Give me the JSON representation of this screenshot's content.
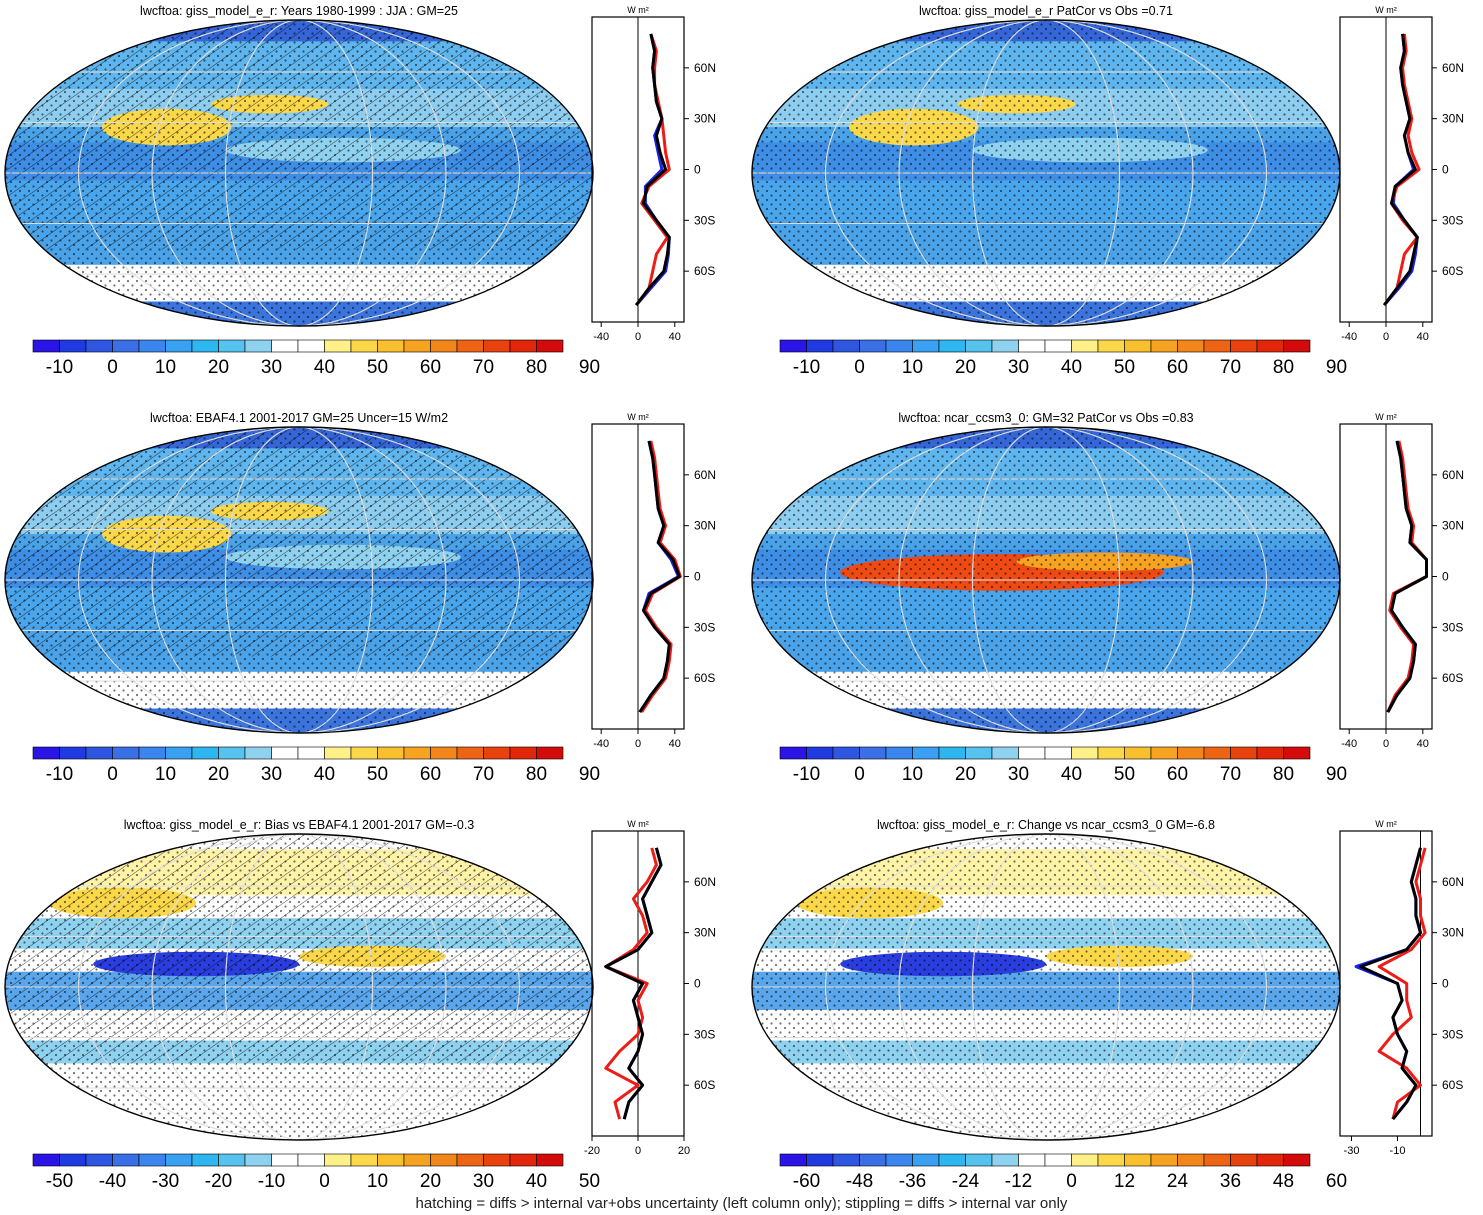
{
  "footer": "hatching = diffs > internal var+obs uncertainty (left column only); stippling = diffs > internal var only",
  "colors": {
    "scale": [
      "#2a14e6",
      "#1f3ae0",
      "#2f56e0",
      "#3a6fe6",
      "#3a86ee",
      "#3aa0f2",
      "#2eb6f0",
      "#56c2ee",
      "#8fd2f0",
      "#ffffff",
      "#ffffff",
      "#fff08a",
      "#fbd84a",
      "#f8bf2e",
      "#f6a321",
      "#f2861b",
      "#ee6415",
      "#e8420f",
      "#e2260a",
      "#d40b0b"
    ],
    "obs": "#1a22e6",
    "model": "#ee1b16",
    "alt": "#000000"
  },
  "chart_data": [
    {
      "type": "heatmap",
      "title": "lwcftoa: giss_model_e_r: Years 1980-1999 : JJA : GM=25",
      "colorbar_labels": [
        "-10",
        "0",
        "10",
        "20",
        "30",
        "40",
        "50",
        "60",
        "70",
        "80",
        "90"
      ],
      "hatching": true,
      "zonal_profile": {
        "unit": "W m²",
        "xlim": [
          -50,
          50
        ],
        "x_ticks": [
          "-40",
          "0",
          "40"
        ],
        "lat_ticks": [
          "60N",
          "30N",
          "0",
          "30S",
          "60S"
        ],
        "lat": [
          80,
          70,
          60,
          50,
          40,
          30,
          20,
          10,
          0,
          -10,
          -20,
          -30,
          -40,
          -50,
          -60,
          -70,
          -80
        ],
        "series": [
          {
            "color_key": "obs",
            "values": [
              14,
              18,
              16,
              18,
              20,
              26,
              18,
              22,
              26,
              8,
              8,
              20,
              34,
              33,
              30,
              14,
              -2
            ]
          },
          {
            "color_key": "model",
            "values": [
              14,
              20,
              18,
              18,
              22,
              26,
              28,
              30,
              34,
              12,
              4,
              18,
              32,
              20,
              16,
              12,
              -2
            ]
          },
          {
            "color_key": "alt",
            "values": [
              14,
              18,
              16,
              18,
              20,
              26,
              20,
              24,
              30,
              10,
              6,
              20,
              34,
              32,
              28,
              12,
              -2
            ]
          }
        ]
      }
    },
    {
      "type": "heatmap",
      "title": "lwcftoa: giss_model_e_r PatCor vs Obs =0.71",
      "colorbar_labels": [
        "-10",
        "0",
        "10",
        "20",
        "30",
        "40",
        "50",
        "60",
        "70",
        "80",
        "90"
      ],
      "hatching": false,
      "zonal_profile": {
        "unit": "W m²",
        "xlim": [
          -50,
          50
        ],
        "x_ticks": [
          "-40",
          "0",
          "40"
        ],
        "lat_ticks": [
          "60N",
          "30N",
          "0",
          "30S",
          "60S"
        ],
        "lat": [
          80,
          70,
          60,
          50,
          40,
          30,
          20,
          10,
          0,
          -10,
          -20,
          -30,
          -40,
          -50,
          -60,
          -70,
          -80
        ],
        "series": [
          {
            "color_key": "obs",
            "values": [
              18,
              20,
              16,
              18,
              22,
              26,
              20,
              24,
              30,
              10,
              8,
              20,
              34,
              32,
              28,
              14,
              -2
            ]
          },
          {
            "color_key": "model",
            "values": [
              20,
              22,
              18,
              20,
              24,
              28,
              24,
              28,
              36,
              12,
              6,
              18,
              34,
              20,
              16,
              12,
              -2
            ]
          },
          {
            "color_key": "alt",
            "values": [
              18,
              20,
              16,
              18,
              22,
              26,
              20,
              24,
              32,
              10,
              6,
              20,
              34,
              30,
              26,
              12,
              -2
            ]
          }
        ]
      }
    },
    {
      "type": "heatmap",
      "title": "lwcftoa: EBAF4.1 2001-2017 GM=25 Uncer=15 W/m2",
      "colorbar_labels": [
        "-10",
        "0",
        "10",
        "20",
        "30",
        "40",
        "50",
        "60",
        "70",
        "80",
        "90"
      ],
      "hatching": true,
      "zonal_profile": {
        "unit": "W m²",
        "xlim": [
          -50,
          50
        ],
        "x_ticks": [
          "-40",
          "0",
          "40"
        ],
        "lat_ticks": [
          "60N",
          "30N",
          "0",
          "30S",
          "60S"
        ],
        "lat": [
          80,
          70,
          60,
          50,
          40,
          30,
          20,
          10,
          0,
          -10,
          -20,
          -30,
          -40,
          -50,
          -60,
          -70,
          -80
        ],
        "series": [
          {
            "color_key": "obs",
            "values": [
              12,
              16,
              18,
              20,
              22,
              28,
              22,
              36,
              44,
              12,
              6,
              18,
              34,
              32,
              28,
              14,
              2
            ]
          },
          {
            "color_key": "model",
            "values": [
              14,
              18,
              20,
              22,
              24,
              30,
              24,
              40,
              46,
              16,
              8,
              20,
              36,
              34,
              30,
              16,
              4
            ]
          },
          {
            "color_key": "alt",
            "values": [
              12,
              16,
              18,
              20,
              22,
              28,
              22,
              38,
              45,
              14,
              6,
              18,
              34,
              32,
              28,
              14,
              2
            ]
          }
        ]
      }
    },
    {
      "type": "heatmap",
      "title": "lwcftoa: ncar_ccsm3_0: GM=32 PatCor vs Obs =0.83",
      "colorbar_labels": [
        "-10",
        "0",
        "10",
        "20",
        "30",
        "40",
        "50",
        "60",
        "70",
        "80",
        "90"
      ],
      "hatching": false,
      "zonal_profile": {
        "unit": "W m²",
        "xlim": [
          -50,
          50
        ],
        "x_ticks": [
          "-40",
          "0",
          "40"
        ],
        "lat_ticks": [
          "60N",
          "30N",
          "0",
          "30S",
          "60S"
        ],
        "lat": [
          80,
          70,
          60,
          50,
          40,
          30,
          20,
          10,
          0,
          -10,
          -20,
          -30,
          -40,
          -50,
          -60,
          -70,
          -80
        ],
        "series": [
          {
            "color_key": "obs",
            "values": [
              12,
              16,
              18,
              20,
              22,
              28,
              26,
              44,
              44,
              10,
              6,
              18,
              32,
              30,
              26,
              12,
              2
            ]
          },
          {
            "color_key": "model",
            "values": [
              14,
              18,
              20,
              22,
              24,
              30,
              28,
              44,
              44,
              8,
              4,
              16,
              30,
              28,
              24,
              10,
              2
            ]
          },
          {
            "color_key": "alt",
            "values": [
              12,
              16,
              18,
              20,
              22,
              28,
              26,
              44,
              44,
              10,
              6,
              18,
              32,
              30,
              26,
              12,
              2
            ]
          }
        ]
      }
    },
    {
      "type": "heatmap",
      "title": "lwcftoa: giss_model_e_r: Bias vs EBAF4.1 2001-2017 GM=-0.3",
      "colorbar_labels": [
        "-50",
        "-40",
        "-30",
        "-20",
        "-10",
        "0",
        "10",
        "20",
        "30",
        "40",
        "50"
      ],
      "hatching": true,
      "zonal_profile": {
        "unit": "W m²",
        "xlim": [
          -20,
          20
        ],
        "x_ticks": [
          "-20",
          "0",
          "20"
        ],
        "lat_ticks": [
          "60N",
          "30N",
          "0",
          "30S",
          "60S"
        ],
        "lat": [
          80,
          70,
          60,
          50,
          40,
          30,
          20,
          10,
          0,
          -10,
          -20,
          -30,
          -40,
          -50,
          -60,
          -70,
          -80
        ],
        "series": [
          {
            "color_key": "obs",
            "values": [
              8,
              10,
              6,
              2,
              4,
              6,
              0,
              -14,
              2,
              -2,
              0,
              2,
              0,
              -4,
              2,
              -4,
              -6
            ]
          },
          {
            "color_key": "model",
            "values": [
              6,
              8,
              4,
              -2,
              2,
              4,
              -2,
              -14,
              4,
              0,
              2,
              0,
              -8,
              -14,
              0,
              -10,
              -8
            ]
          },
          {
            "color_key": "alt",
            "values": [
              8,
              10,
              6,
              2,
              4,
              6,
              0,
              -14,
              2,
              -2,
              0,
              2,
              0,
              -4,
              2,
              -4,
              -6
            ]
          }
        ]
      }
    },
    {
      "type": "heatmap",
      "title": "lwcftoa: giss_model_e_r: Change vs ncar_ccsm3_0 GM=-6.8",
      "colorbar_labels": [
        "-60",
        "-48",
        "-36",
        "-24",
        "-12",
        "0",
        "12",
        "24",
        "36",
        "48",
        "60"
      ],
      "hatching": false,
      "zonal_profile": {
        "unit": "W m²",
        "xlim": [
          -35,
          5
        ],
        "x_ticks": [
          "-30",
          "-10"
        ],
        "lat_ticks": [
          "60N",
          "30N",
          "0",
          "30S",
          "60S"
        ],
        "lat": [
          80,
          70,
          60,
          50,
          40,
          30,
          20,
          10,
          0,
          -10,
          -20,
          -30,
          -40,
          -50,
          -60,
          -70,
          -80
        ],
        "series": [
          {
            "color_key": "obs",
            "values": [
              0,
              -2,
              -4,
              -2,
              -2,
              0,
              -6,
              -28,
              -10,
              -8,
              -12,
              -10,
              -6,
              -8,
              -2,
              -6,
              -12
            ]
          },
          {
            "color_key": "model",
            "values": [
              2,
              0,
              -2,
              0,
              0,
              2,
              -4,
              -18,
              -6,
              -6,
              -4,
              -12,
              -18,
              -6,
              0,
              -10,
              -12
            ]
          },
          {
            "color_key": "alt",
            "values": [
              0,
              -2,
              -4,
              -2,
              -2,
              0,
              -6,
              -26,
              -10,
              -8,
              -12,
              -10,
              -6,
              -8,
              -2,
              -6,
              -12
            ]
          }
        ]
      }
    }
  ]
}
